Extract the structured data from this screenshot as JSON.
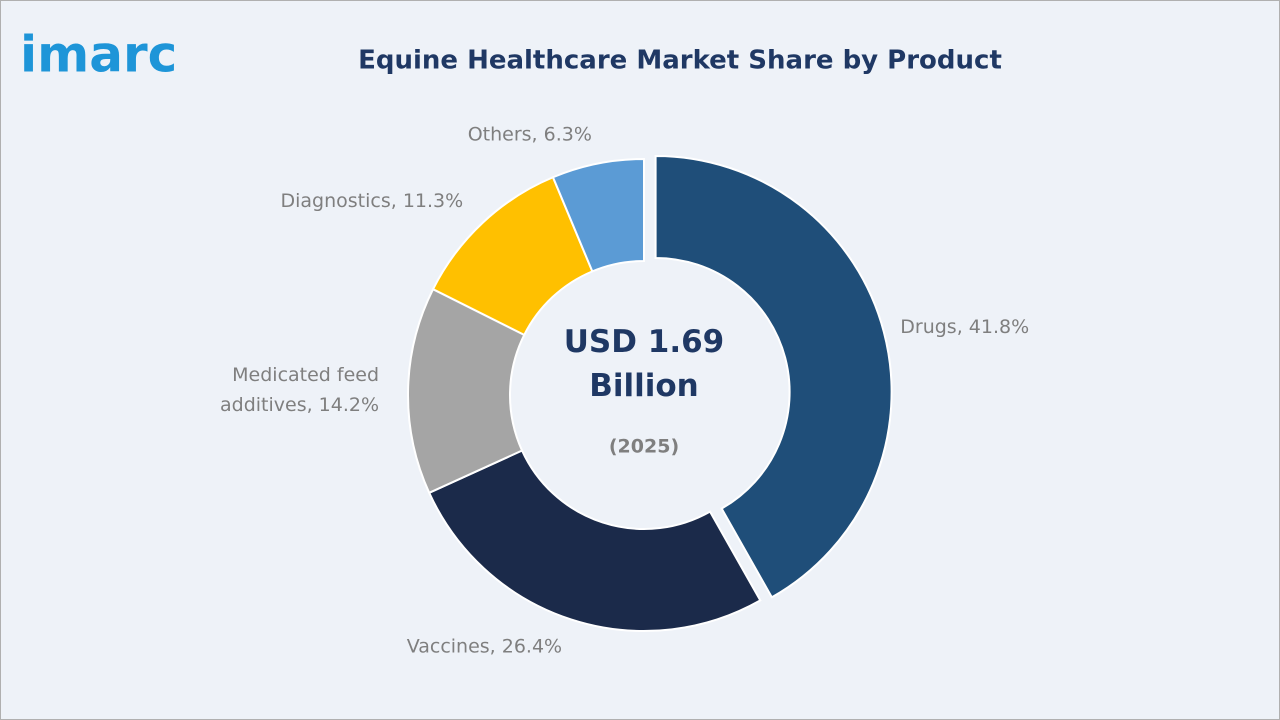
{
  "brand": "imarc",
  "chart_data": {
    "type": "donut",
    "title": "Equine Healthcare Market Share by Product",
    "values": [
      41.8,
      26.4,
      14.2,
      11.3,
      6.3
    ],
    "value_labels": [
      "Drugs, 41.8%",
      "Vaccines, 26.4%",
      "Medicated feed additives, 14.2%",
      "Diagnostics, 11.3%",
      "Others, 6.3%"
    ],
    "colors": [
      "#1f4e79",
      "#1b2a4a",
      "#a5a5a5",
      "#ffc000",
      "#5b9bd5"
    ],
    "exploded": [
      true,
      false,
      false,
      false,
      false
    ],
    "center_text": "USD 1.69 Billion",
    "center_subtext": "(2025)"
  }
}
